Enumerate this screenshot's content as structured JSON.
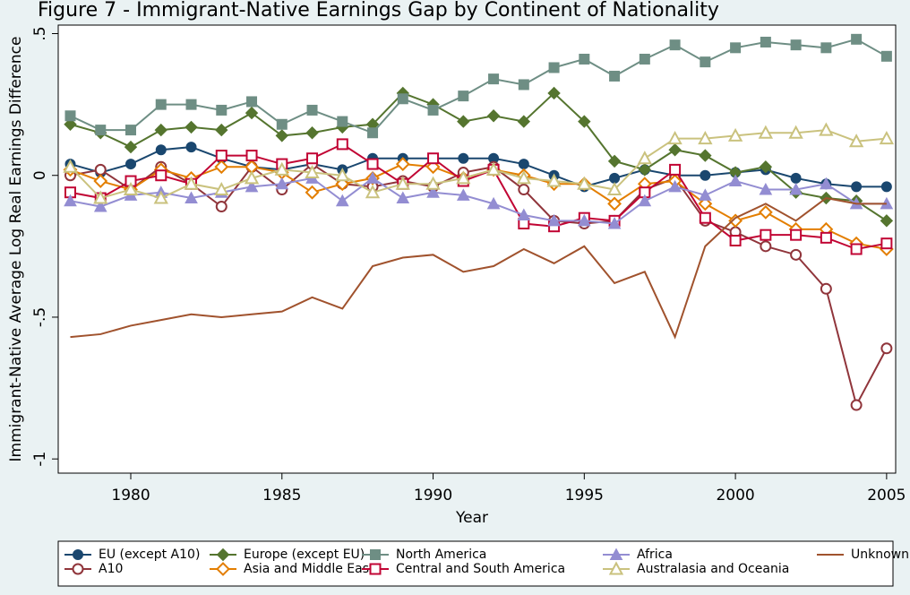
{
  "chart_data": {
    "type": "line",
    "title": "Figure 7 - Immigrant-Native Earnings Gap by Continent of Nationality",
    "x_label": "Year",
    "y_label": "Immigrant-Native Average Log Real Earnings Difference",
    "x": [
      1978,
      1979,
      1980,
      1981,
      1982,
      1983,
      1984,
      1985,
      1986,
      1987,
      1988,
      1989,
      1990,
      1991,
      1992,
      1993,
      1994,
      1995,
      1996,
      1997,
      1998,
      1999,
      2000,
      2001,
      2002,
      2003,
      2004,
      2005
    ],
    "xlim": [
      1977.6,
      2005.3
    ],
    "xticks": [
      1980,
      1985,
      1990,
      1995,
      2000,
      2005
    ],
    "ylim": [
      -1.05,
      0.53
    ],
    "yticks": [
      {
        "value": 0.5,
        "label": ".5"
      },
      0,
      {
        "value": -0.5,
        "label": "-.5"
      },
      -1
    ],
    "series": [
      {
        "name": "EU (except A10)",
        "color": "#1a476f",
        "marker": "circle",
        "hollow": false,
        "values": [
          0.04,
          0.01,
          0.04,
          0.09,
          0.1,
          0.06,
          0.03,
          0.02,
          0.04,
          0.02,
          0.06,
          0.06,
          0.06,
          0.06,
          0.06,
          0.04,
          0.0,
          -0.04,
          -0.01,
          0.02,
          0.0,
          0.0,
          0.01,
          0.02,
          -0.01,
          -0.03,
          -0.04,
          -0.04
        ]
      },
      {
        "name": "A10",
        "color": "#90353b",
        "marker": "circle",
        "hollow": true,
        "values": [
          0.0,
          0.02,
          -0.05,
          0.03,
          -0.03,
          -0.11,
          0.03,
          -0.05,
          0.04,
          -0.03,
          -0.04,
          -0.02,
          -0.04,
          0.01,
          0.03,
          -0.05,
          -0.16,
          -0.17,
          -0.16,
          -0.05,
          -0.01,
          -0.16,
          -0.2,
          -0.25,
          -0.28,
          -0.4,
          -0.81,
          -0.61
        ]
      },
      {
        "name": "Europe (except EU)",
        "color": "#55752f",
        "marker": "diamond",
        "hollow": false,
        "values": [
          0.18,
          0.15,
          0.1,
          0.16,
          0.17,
          0.16,
          0.22,
          0.14,
          0.15,
          0.17,
          0.18,
          0.29,
          0.25,
          0.19,
          0.21,
          0.19,
          0.29,
          0.19,
          0.05,
          0.02,
          0.09,
          0.07,
          0.01,
          0.03,
          -0.06,
          -0.08,
          -0.09,
          -0.16
        ]
      },
      {
        "name": "Asia and Middle East",
        "color": "#e37e00",
        "marker": "diamond",
        "hollow": true,
        "values": [
          0.02,
          -0.02,
          -0.05,
          0.02,
          -0.01,
          0.03,
          0.03,
          0.01,
          -0.06,
          -0.03,
          -0.01,
          0.04,
          0.03,
          -0.01,
          0.02,
          0.0,
          -0.03,
          -0.03,
          -0.1,
          -0.03,
          -0.02,
          -0.1,
          -0.16,
          -0.13,
          -0.19,
          -0.19,
          -0.24,
          -0.26
        ]
      },
      {
        "name": "North America",
        "color": "#6e8e84",
        "marker": "square",
        "hollow": false,
        "values": [
          0.21,
          0.16,
          0.16,
          0.25,
          0.25,
          0.23,
          0.26,
          0.18,
          0.23,
          0.19,
          0.15,
          0.27,
          0.23,
          0.28,
          0.34,
          0.32,
          0.38,
          0.41,
          0.35,
          0.41,
          0.46,
          0.4,
          0.45,
          0.47,
          0.46,
          0.45,
          0.48,
          0.42
        ]
      },
      {
        "name": "Central and South America",
        "color": "#c10534",
        "marker": "square",
        "hollow": true,
        "values": [
          -0.06,
          -0.08,
          -0.02,
          0.0,
          -0.03,
          0.07,
          0.07,
          0.04,
          0.06,
          0.11,
          0.04,
          -0.03,
          0.06,
          -0.02,
          0.02,
          -0.17,
          -0.18,
          -0.15,
          -0.16,
          -0.06,
          0.02,
          -0.15,
          -0.23,
          -0.21,
          -0.21,
          -0.22,
          -0.26,
          -0.24
        ]
      },
      {
        "name": "Africa",
        "color": "#938dd2",
        "marker": "triangle",
        "hollow": false,
        "values": [
          -0.09,
          -0.11,
          -0.07,
          -0.06,
          -0.08,
          -0.06,
          -0.04,
          -0.03,
          -0.01,
          -0.09,
          -0.01,
          -0.08,
          -0.06,
          -0.07,
          -0.1,
          -0.14,
          -0.16,
          -0.16,
          -0.17,
          -0.09,
          -0.04,
          -0.07,
          -0.02,
          -0.05,
          -0.05,
          -0.03,
          -0.1,
          -0.1
        ]
      },
      {
        "name": "Australasia and Oceania",
        "color": "#cac27e",
        "marker": "triangle",
        "hollow": true,
        "values": [
          0.03,
          -0.08,
          -0.05,
          -0.08,
          -0.03,
          -0.05,
          -0.01,
          0.02,
          0.01,
          0.0,
          -0.06,
          -0.03,
          -0.03,
          -0.01,
          0.02,
          -0.01,
          -0.02,
          -0.03,
          -0.05,
          0.06,
          0.13,
          0.13,
          0.14,
          0.15,
          0.15,
          0.16,
          0.12,
          0.13
        ]
      },
      {
        "name": "Unknown",
        "color": "#a0522d",
        "marker": "none",
        "hollow": false,
        "values": [
          -0.57,
          -0.56,
          -0.53,
          -0.51,
          -0.49,
          -0.5,
          -0.49,
          -0.48,
          -0.43,
          -0.47,
          -0.32,
          -0.29,
          -0.28,
          -0.34,
          -0.32,
          -0.26,
          -0.31,
          -0.25,
          -0.38,
          -0.34,
          -0.57,
          -0.25,
          -0.15,
          -0.1,
          -0.16,
          -0.08,
          -0.1,
          -0.1
        ]
      }
    ]
  }
}
